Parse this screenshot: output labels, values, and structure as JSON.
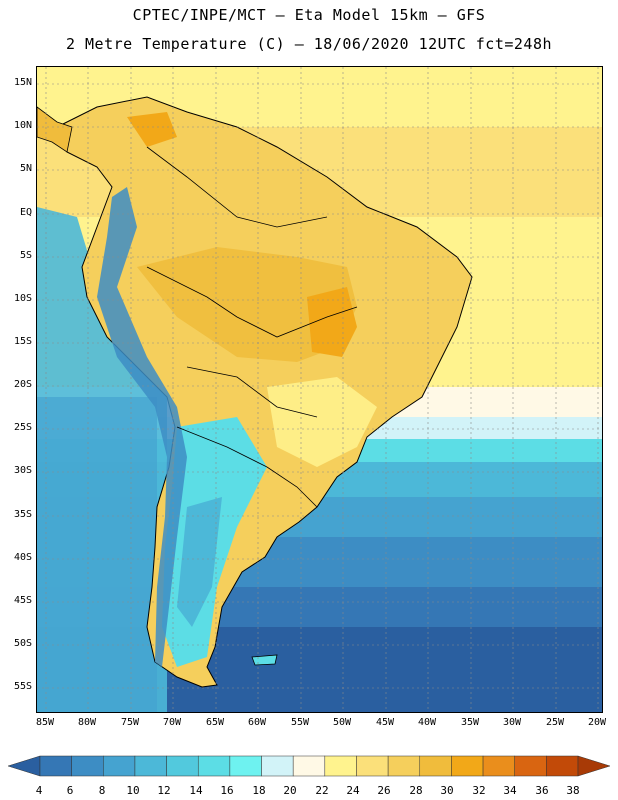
{
  "header": {
    "line1": "CPTEC/INPE/MCT –  Eta Model 15km – GFS",
    "line2": "2 Metre Temperature (C) – 18/06/2020 12UTC fct=248h"
  },
  "map": {
    "region": "South America",
    "lat_labels": [
      "15N",
      "10N",
      "5N",
      "EQ",
      "5S",
      "10S",
      "15S",
      "20S",
      "25S",
      "30S",
      "35S",
      "40S",
      "45S",
      "50S",
      "55S"
    ],
    "lon_labels": [
      "85W",
      "80W",
      "75W",
      "70W",
      "65W",
      "60W",
      "55W",
      "50W",
      "45W",
      "40W",
      "35W",
      "30W",
      "25W",
      "20W"
    ]
  },
  "colorbar": {
    "labels": [
      "4",
      "6",
      "8",
      "10",
      "12",
      "14",
      "16",
      "18",
      "20",
      "22",
      "24",
      "26",
      "28",
      "30",
      "32",
      "34",
      "36",
      "38"
    ],
    "colors": [
      "#2a5fa0",
      "#3577b5",
      "#3d8dc4",
      "#45a3d0",
      "#4cb8d8",
      "#52c9dd",
      "#5cdde5",
      "#6ef2f0",
      "#d2f3f8",
      "#fff9e6",
      "#fff38e",
      "#fbe07a",
      "#f5cf5c",
      "#f0bc3c",
      "#f2a818",
      "#ea8e1c",
      "#d96511",
      "#c24a08",
      "#a83a06"
    ]
  }
}
